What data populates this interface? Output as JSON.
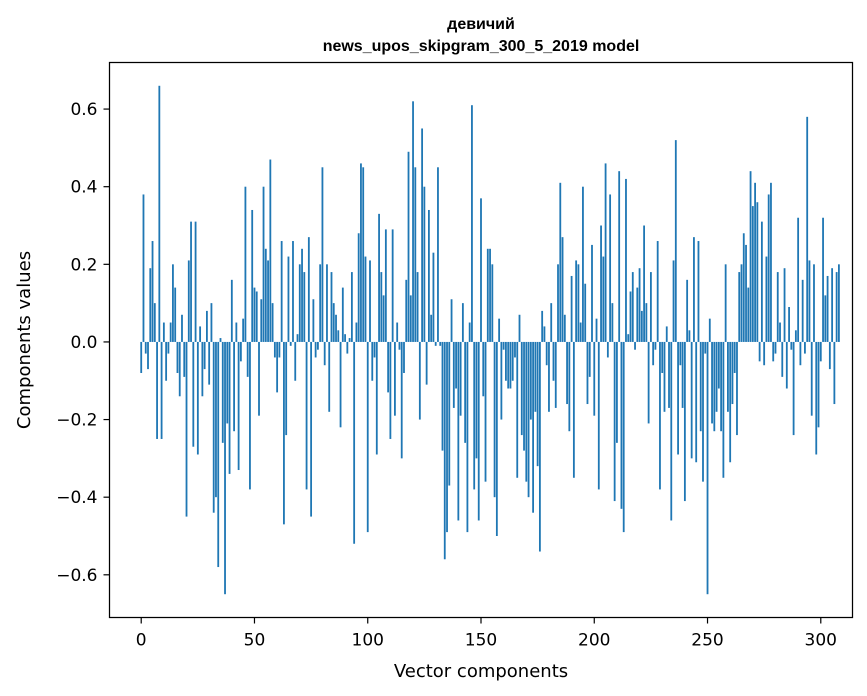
{
  "chart_data": {
    "type": "bar",
    "title": "девичий",
    "subtitle": "news_upos_skipgram_300_5_2019 model",
    "xlabel": "Vector components",
    "ylabel": "Components values",
    "xlim": [
      -14,
      314
    ],
    "ylim": [
      -0.71,
      0.72
    ],
    "xticks": [
      0,
      50,
      100,
      150,
      200,
      250,
      300
    ],
    "xtick_labels": [
      "0",
      "50",
      "100",
      "150",
      "200",
      "250",
      "300"
    ],
    "yticks": [
      -0.6,
      -0.4,
      -0.2,
      0.0,
      0.2,
      0.4,
      0.6
    ],
    "ytick_labels": [
      "−0.6",
      "−0.4",
      "−0.2",
      "0.0",
      "0.2",
      "0.4",
      "0.6"
    ],
    "grid": false,
    "legend": "none",
    "bar_color": "#1f77b4",
    "values": [
      -0.08,
      0.38,
      -0.03,
      -0.07,
      0.19,
      0.26,
      0.1,
      -0.25,
      0.66,
      -0.25,
      0.05,
      -0.1,
      -0.03,
      0.05,
      0.2,
      0.14,
      -0.08,
      -0.14,
      0.07,
      -0.09,
      -0.45,
      0.21,
      0.31,
      -0.27,
      0.31,
      -0.29,
      0.04,
      -0.14,
      -0.07,
      0.08,
      -0.11,
      0.1,
      -0.44,
      -0.4,
      -0.58,
      0.01,
      -0.26,
      -0.65,
      -0.21,
      -0.34,
      0.16,
      -0.23,
      0.05,
      -0.33,
      -0.05,
      0.06,
      0.4,
      -0.09,
      -0.38,
      0.34,
      0.14,
      0.13,
      -0.19,
      0.11,
      0.4,
      0.24,
      0.21,
      0.47,
      0.1,
      -0.04,
      -0.13,
      -0.04,
      0.26,
      -0.47,
      -0.24,
      0.22,
      -0.01,
      0.26,
      -0.1,
      0.02,
      0.2,
      0.24,
      0.18,
      -0.38,
      0.27,
      -0.45,
      0.11,
      -0.04,
      -0.02,
      0.2,
      0.45,
      -0.06,
      0.2,
      -0.18,
      0.18,
      0.1,
      0.07,
      0.03,
      -0.22,
      0.14,
      0.02,
      -0.03,
      0.01,
      0.18,
      -0.52,
      0.05,
      0.28,
      0.46,
      0.45,
      0.22,
      -0.49,
      0.21,
      -0.1,
      -0.04,
      -0.29,
      0.33,
      0.18,
      0.12,
      0.29,
      -0.13,
      -0.25,
      0.29,
      -0.19,
      0.05,
      -0.02,
      -0.3,
      -0.08,
      0.16,
      0.49,
      0.12,
      0.62,
      0.45,
      0.18,
      -0.2,
      0.55,
      0.4,
      -0.11,
      0.34,
      0.07,
      0.23,
      -0.01,
      0.45,
      -0.01,
      -0.28,
      -0.56,
      -0.49,
      -0.37,
      0.11,
      -0.17,
      -0.12,
      -0.46,
      -0.19,
      0.1,
      -0.26,
      -0.49,
      0.05,
      0.61,
      -0.38,
      -0.3,
      -0.46,
      0.37,
      -0.14,
      -0.36,
      0.24,
      0.24,
      0.2,
      -0.4,
      -0.5,
      0.06,
      -0.2,
      -0.02,
      -0.1,
      -0.12,
      -0.12,
      -0.1,
      -0.04,
      -0.35,
      0.07,
      -0.24,
      -0.28,
      -0.36,
      -0.4,
      -0.2,
      -0.44,
      -0.18,
      -0.32,
      -0.54,
      0.08,
      0.04,
      -0.06,
      -0.18,
      0.1,
      -0.1,
      -0.17,
      0.2,
      0.41,
      0.27,
      0.07,
      -0.16,
      -0.23,
      0.17,
      -0.35,
      0.21,
      0.2,
      0.05,
      0.4,
      0.15,
      -0.16,
      -0.09,
      0.25,
      -0.19,
      0.06,
      -0.38,
      0.3,
      0.22,
      0.46,
      -0.04,
      0.38,
      0.1,
      -0.41,
      -0.26,
      0.44,
      -0.43,
      -0.49,
      0.42,
      0.02,
      0.13,
      0.18,
      -0.02,
      0.14,
      0.19,
      0.08,
      0.3,
      0.1,
      -0.21,
      0.18,
      -0.06,
      -0.02,
      0.26,
      -0.38,
      -0.08,
      -0.18,
      0.04,
      -0.17,
      -0.46,
      0.21,
      0.52,
      -0.29,
      -0.06,
      -0.17,
      -0.41,
      0.16,
      0.03,
      -0.3,
      0.27,
      -0.31,
      0.26,
      -0.23,
      -0.36,
      -0.03,
      -0.65,
      0.06,
      -0.21,
      -0.23,
      -0.18,
      -0.12,
      -0.23,
      -0.35,
      0.2,
      -0.18,
      -0.31,
      -0.16,
      -0.08,
      -0.24,
      0.18,
      0.2,
      0.28,
      0.25,
      0.14,
      0.44,
      0.35,
      0.41,
      0.36,
      -0.05,
      0.31,
      -0.06,
      0.22,
      0.38,
      0.41,
      -0.05,
      -0.03,
      0.18,
      0.05,
      -0.09,
      0.19,
      -0.12,
      0.09,
      -0.02,
      -0.24,
      0.03,
      0.32,
      -0.06,
      0.16,
      -0.03,
      0.58,
      0.21,
      -0.19,
      0.2,
      -0.29,
      -0.22,
      -0.05,
      0.32,
      0.12,
      0.17,
      -0.07,
      0.19,
      -0.16,
      0.18,
      0.2
    ]
  }
}
